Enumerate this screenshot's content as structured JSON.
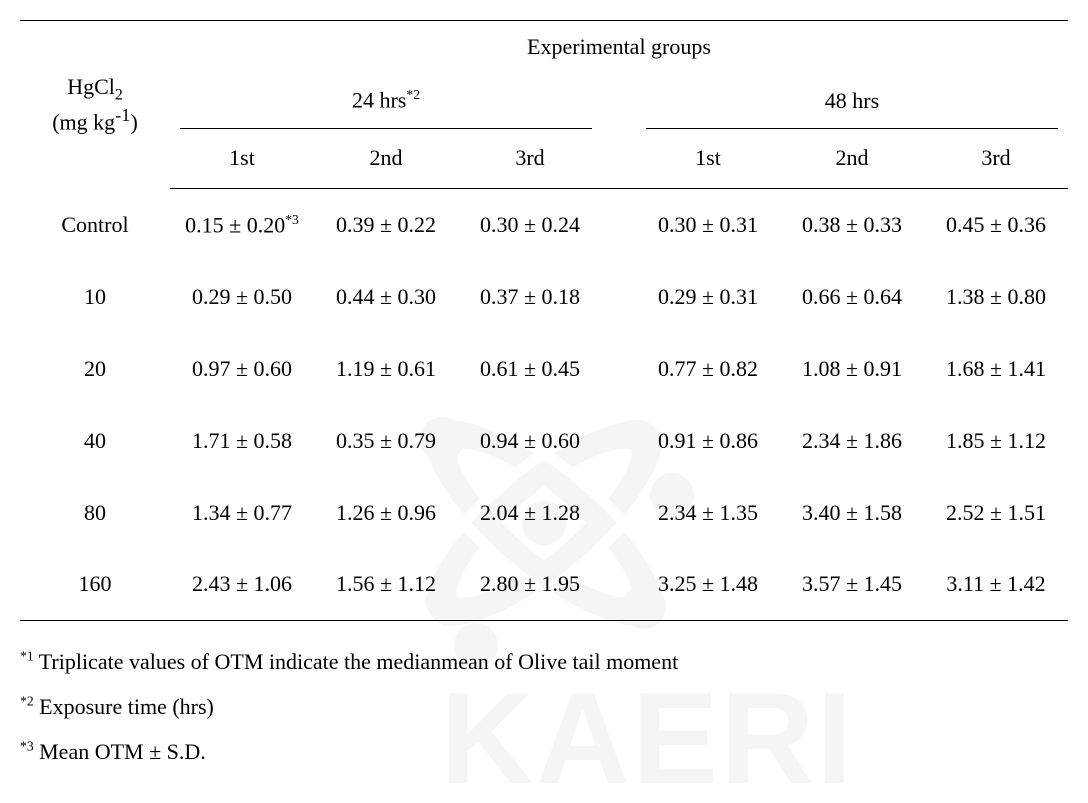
{
  "header": {
    "group_title": "Experimental groups",
    "row_label_html": "HgCl<sub>2</sub><br>(mg&nbsp;kg<sup>-1</sup>)",
    "h24_html": "24&nbsp;hrs<sup class=\"fn\">*2</sup>",
    "h48": "48 hrs",
    "sub1": "1st",
    "sub2": "2nd",
    "sub3": "3rd"
  },
  "rows": [
    {
      "label": "Control",
      "a1": "0.15 ± 0.20",
      "a1_sup": "*3",
      "a2": "0.39 ± 0.22",
      "a3": "0.30 ± 0.24",
      "b1": "0.30 ± 0.31",
      "b2": "0.38 ± 0.33",
      "b3": "0.45 ± 0.36"
    },
    {
      "label": "10",
      "a1": "0.29 ± 0.50",
      "a2": "0.44 ± 0.30",
      "a3": "0.37 ± 0.18",
      "b1": "0.29 ± 0.31",
      "b2": "0.66 ± 0.64",
      "b3": "1.38 ± 0.80"
    },
    {
      "label": "20",
      "a1": "0.97 ± 0.60",
      "a2": "1.19 ± 0.61",
      "a3": "0.61 ± 0.45",
      "b1": "0.77 ± 0.82",
      "b2": "1.08 ± 0.91",
      "b3": "1.68 ± 1.41"
    },
    {
      "label": "40",
      "a1": "1.71 ± 0.58",
      "a2": "0.35 ± 0.79",
      "a3": "0.94 ± 0.60",
      "b1": "0.91 ± 0.86",
      "b2": "2.34 ± 1.86",
      "b3": "1.85 ± 1.12"
    },
    {
      "label": "80",
      "a1": "1.34 ± 0.77",
      "a2": "1.26 ± 0.96",
      "a3": "2.04 ± 1.28",
      "b1": "2.34 ± 1.35",
      "b2": "3.40 ± 1.58",
      "b3": "2.52 ± 1.51"
    },
    {
      "label": "160",
      "a1": "2.43 ± 1.06",
      "a2": "1.56 ± 1.12",
      "a3": "2.80 ± 1.95",
      "b1": "3.25 ± 1.48",
      "b2": "3.57 ± 1.45",
      "b3": "3.11 ± 1.42"
    }
  ],
  "footnotes": {
    "f1_html": "<sup class=\"fn\">*1</sup> Triplicate values of OTM indicate the medianmean of Olive tail moment",
    "f2_html": "<sup class=\"fn\">*2</sup> Exposure time (hrs)",
    "f3_html": "<sup class=\"fn\">*3</sup> Mean OTM ± S.D."
  },
  "watermark": {
    "text": "KAERI",
    "color": "#b9bcbe"
  }
}
